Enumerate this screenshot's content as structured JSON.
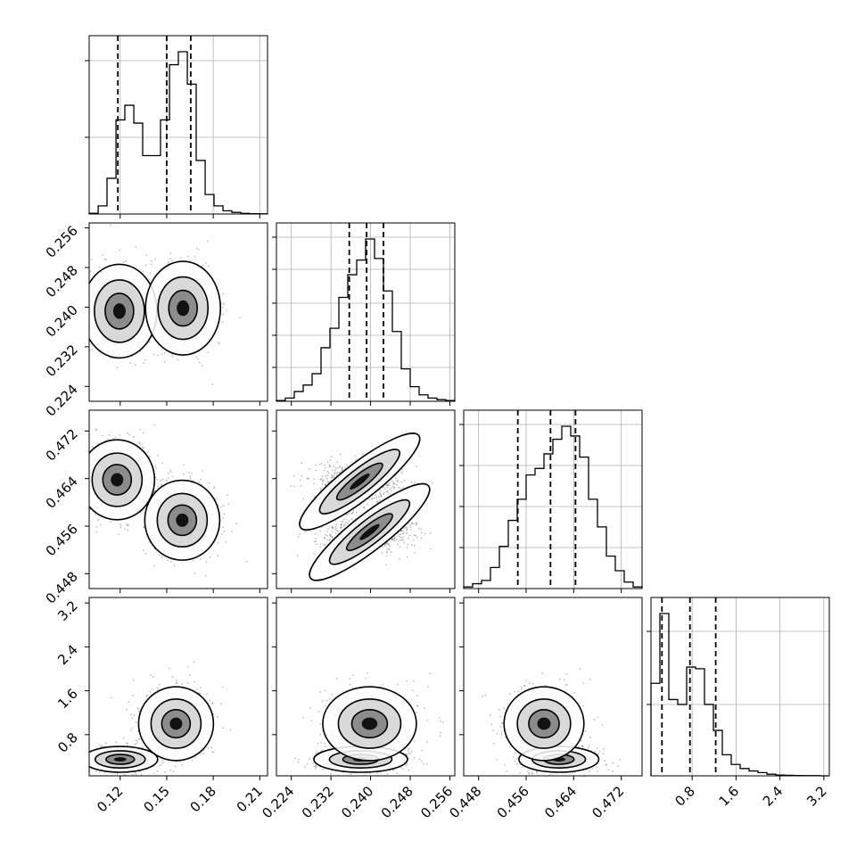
{
  "chart_data": {
    "type": "corner",
    "params": [
      {
        "range": [
          0.1,
          0.215
        ],
        "ticks": [
          0.12,
          0.15,
          0.18,
          0.21
        ],
        "tick_labels": [
          "0.12",
          "0.15",
          "0.18",
          "0.21"
        ]
      },
      {
        "range": [
          0.221,
          0.257
        ],
        "ticks": [
          0.224,
          0.232,
          0.24,
          0.248,
          0.256
        ],
        "tick_labels": [
          "0.224",
          "0.232",
          "0.240",
          "0.248",
          "0.256"
        ]
      },
      {
        "range": [
          0.4455,
          0.4755
        ],
        "ticks": [
          0.448,
          0.456,
          0.464,
          0.472
        ],
        "tick_labels": [
          "0.448",
          "0.456",
          "0.464",
          "0.472"
        ]
      },
      {
        "range": [
          0.05,
          3.3
        ],
        "ticks": [
          0.8,
          1.6,
          2.4,
          3.2
        ],
        "tick_labels": [
          "0.8",
          "1.6",
          "2.4",
          "3.2"
        ]
      }
    ],
    "histograms": [
      {
        "param": 0,
        "bins": [
          0.1,
          0.1058,
          0.1115,
          0.1173,
          0.123,
          0.1288,
          0.1345,
          0.1403,
          0.146,
          0.1518,
          0.1575,
          0.1633,
          0.169,
          0.1748,
          0.1805,
          0.1863,
          0.192,
          0.1978,
          0.2035,
          0.2093,
          0.215
        ],
        "counts": [
          0.005,
          0.05,
          0.22,
          0.58,
          0.67,
          0.56,
          0.36,
          0.36,
          0.58,
          0.92,
          1.0,
          0.8,
          0.33,
          0.12,
          0.05,
          0.02,
          0.01,
          0.004,
          0.002,
          0.001
        ],
        "quantiles": [
          0.1185,
          0.15,
          0.1655
        ],
        "grid_fractions": [
          0.43,
          0.86
        ]
      },
      {
        "param": 1,
        "bins": [
          0.221,
          0.2228,
          0.2246,
          0.2264,
          0.2282,
          0.23,
          0.2318,
          0.2336,
          0.2354,
          0.2372,
          0.239,
          0.2408,
          0.2426,
          0.2444,
          0.2462,
          0.248,
          0.2498,
          0.2516,
          0.2534,
          0.2552,
          0.257
        ],
        "counts": [
          0.005,
          0.02,
          0.06,
          0.1,
          0.17,
          0.33,
          0.45,
          0.64,
          0.78,
          0.87,
          1.0,
          0.88,
          0.68,
          0.43,
          0.2,
          0.09,
          0.04,
          0.02,
          0.01,
          0.005
        ],
        "quantiles": [
          0.2357,
          0.2392,
          0.2426
        ],
        "grid_fractions": [
          0.19,
          0.37,
          0.55,
          0.74,
          0.92
        ]
      },
      {
        "param": 2,
        "bins": [
          0.4455,
          0.447,
          0.4485,
          0.45,
          0.4515,
          0.453,
          0.4545,
          0.456,
          0.4575,
          0.459,
          0.4605,
          0.462,
          0.4635,
          0.465,
          0.4665,
          0.468,
          0.4695,
          0.471,
          0.4725,
          0.474,
          0.4755
        ],
        "counts": [
          0.01,
          0.03,
          0.05,
          0.13,
          0.26,
          0.42,
          0.55,
          0.7,
          0.74,
          0.83,
          0.92,
          1.0,
          0.94,
          0.81,
          0.55,
          0.38,
          0.2,
          0.11,
          0.04,
          0.01
        ],
        "quantiles": [
          0.4546,
          0.4601,
          0.4643
        ],
        "grid_fractions": [
          0.23,
          0.46,
          0.69,
          0.92
        ]
      },
      {
        "param": 3,
        "bins": [
          0.05,
          0.2125,
          0.375,
          0.5375,
          0.7,
          0.8625,
          1.025,
          1.1875,
          1.35,
          1.5125,
          1.675,
          1.8375,
          2.0,
          2.1625,
          2.325,
          2.4875,
          2.65,
          2.8125,
          2.975,
          3.1375,
          3.3
        ],
        "counts": [
          0.57,
          1.0,
          0.47,
          0.44,
          0.67,
          0.66,
          0.44,
          0.28,
          0.13,
          0.07,
          0.045,
          0.03,
          0.02,
          0.01,
          0.005,
          0.003,
          0.002,
          0.001,
          0.001,
          0.0
        ],
        "quantiles": [
          0.25,
          0.76,
          1.23
        ],
        "grid_fractions": [
          0.4,
          0.81
        ]
      }
    ],
    "pairs": [
      {
        "x_param": 0,
        "y_param": 1,
        "modes": [
          {
            "x": 0.1195,
            "y": 0.2392
          },
          {
            "x": 0.1605,
            "y": 0.2398
          }
        ]
      },
      {
        "x_param": 0,
        "y_param": 2,
        "modes": [
          {
            "x": 0.118,
            "y": 0.4638
          },
          {
            "x": 0.16,
            "y": 0.457
          }
        ]
      },
      {
        "x_param": 0,
        "y_param": 3,
        "modes": [
          {
            "x": 0.12,
            "y": 0.35
          },
          {
            "x": 0.156,
            "y": 1.0
          }
        ]
      },
      {
        "x_param": 1,
        "y_param": 2,
        "modes": [
          {
            "x": 0.2378,
            "y": 0.4635
          },
          {
            "x": 0.2398,
            "y": 0.455
          }
        ]
      },
      {
        "x_param": 1,
        "y_param": 3,
        "modes": [
          {
            "x": 0.238,
            "y": 0.35
          },
          {
            "x": 0.2398,
            "y": 1.0
          }
        ]
      },
      {
        "x_param": 2,
        "y_param": 3,
        "modes": [
          {
            "x": 0.4615,
            "y": 0.35
          },
          {
            "x": 0.459,
            "y": 1.0
          }
        ]
      }
    ],
    "grid": true,
    "contour_levels": 3
  }
}
